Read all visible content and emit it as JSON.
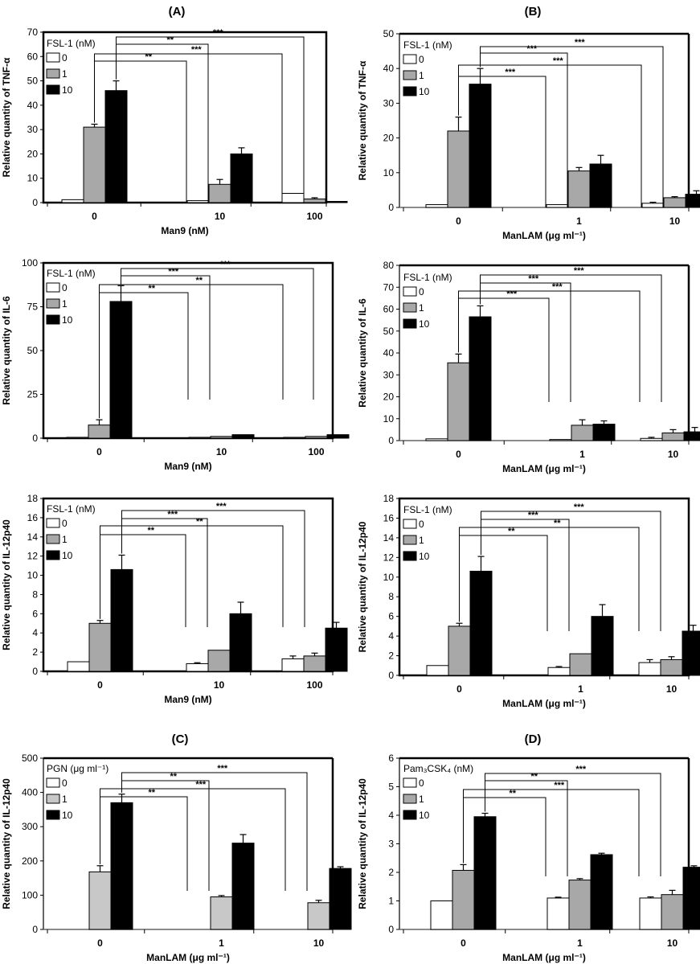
{
  "panel_labels": [
    "(A)",
    "(B)",
    "(C)",
    "(D)"
  ],
  "colors": {
    "white_bar": "#ffffff",
    "gray_bar": "#a8a8a8",
    "light_gray_bar": "#c8c8c8",
    "black_bar": "#000000",
    "ink": "#000000"
  },
  "chart_data": [
    {
      "id": "A1",
      "type": "bar",
      "ylabel": "Relative quantity of TNF-α",
      "xlabel": "Man9 (nM)",
      "categories": [
        "0",
        "10",
        "100"
      ],
      "ylim": [
        0,
        70
      ],
      "yticks": [
        0,
        10,
        20,
        30,
        40,
        50,
        60,
        70
      ],
      "legend_title": "FSL-1 (nM)",
      "series": [
        {
          "name": "0",
          "values": [
            1.2,
            0.8,
            3.8
          ],
          "errors": [
            0,
            0,
            0
          ]
        },
        {
          "name": "1",
          "values": [
            31,
            7.5,
            1.5
          ],
          "errors": [
            1.2,
            2,
            0.5
          ]
        },
        {
          "name": "10",
          "values": [
            46,
            20,
            0.5
          ],
          "errors": [
            4,
            2.5,
            0
          ]
        }
      ],
      "sig": [
        {
          "label": "**",
          "to": "10 nM, FSL-1 1"
        },
        {
          "label": "**",
          "to": "10 nM, FSL-1 10"
        },
        {
          "label": "***",
          "to": "100 nM, FSL-1 1"
        },
        {
          "label": "***",
          "to": "100 nM, FSL-1 10"
        }
      ]
    },
    {
      "id": "B1",
      "type": "bar",
      "ylabel": "Relative quantity of TNF-α",
      "xlabel": "ManLAM (μg ml⁻¹)",
      "categories": [
        "0",
        "1",
        "10"
      ],
      "ylim": [
        0,
        50
      ],
      "yticks": [
        0,
        10,
        20,
        30,
        40,
        50
      ],
      "legend_title": "FSL-1 (nM)",
      "series": [
        {
          "name": "0",
          "values": [
            0.8,
            0.8,
            1.2
          ],
          "errors": [
            0,
            0,
            0.3
          ]
        },
        {
          "name": "1",
          "values": [
            22,
            10.5,
            2.8
          ],
          "errors": [
            4,
            1,
            0.3
          ]
        },
        {
          "name": "10",
          "values": [
            35.5,
            12.5,
            3.8
          ],
          "errors": [
            4.5,
            2.5,
            1
          ]
        }
      ],
      "sig": [
        {
          "label": "***",
          "to": "1, FSL-1 1"
        },
        {
          "label": "***",
          "to": "1, FSL-1 10"
        },
        {
          "label": "***",
          "to": "10, FSL-1 1"
        },
        {
          "label": "***",
          "to": "10, FSL-1 10"
        }
      ]
    },
    {
      "id": "A2",
      "type": "bar",
      "ylabel": "Relative quantity of IL-6",
      "xlabel": "Man9 (nM)",
      "categories": [
        "0",
        "10",
        "100"
      ],
      "ylim": [
        0,
        100
      ],
      "yticks": [
        0,
        25,
        50,
        75,
        100
      ],
      "legend_title": "FSL-1 (nM)",
      "series": [
        {
          "name": "0",
          "values": [
            0.5,
            0.5,
            0.5
          ],
          "errors": [
            0,
            0,
            0
          ]
        },
        {
          "name": "1",
          "values": [
            7.5,
            1,
            1
          ],
          "errors": [
            3,
            0,
            0
          ]
        },
        {
          "name": "10",
          "values": [
            78,
            2,
            2
          ],
          "errors": [
            9,
            0,
            0
          ]
        }
      ],
      "sig": [
        {
          "label": "**",
          "to": "10 nM, FSL-1 1"
        },
        {
          "label": "***",
          "to": "10 nM, FSL-1 10"
        },
        {
          "label": "**",
          "to": "100 nM, FSL-1 1"
        },
        {
          "label": "***",
          "to": "100 nM, FSL-1 10"
        }
      ]
    },
    {
      "id": "B2",
      "type": "bar",
      "ylabel": "Relative quantity of IL-6",
      "xlabel": "ManLAM (μg ml⁻¹)",
      "categories": [
        "0",
        "1",
        "10"
      ],
      "ylim": [
        0,
        80
      ],
      "yticks": [
        0,
        10,
        20,
        30,
        40,
        50,
        60,
        70,
        80
      ],
      "legend_title": "FSL-1 (nM)",
      "series": [
        {
          "name": "0",
          "values": [
            0.8,
            0.5,
            1
          ],
          "errors": [
            0,
            0,
            0.5
          ]
        },
        {
          "name": "1",
          "values": [
            35.5,
            7,
            3.5
          ],
          "errors": [
            4,
            2.5,
            1.5
          ]
        },
        {
          "name": "10",
          "values": [
            56.5,
            7.5,
            4
          ],
          "errors": [
            5,
            1.5,
            2
          ]
        }
      ],
      "sig": [
        {
          "label": "***",
          "to": "1, FSL-1 1"
        },
        {
          "label": "***",
          "to": "1, FSL-1 10"
        },
        {
          "label": "***",
          "to": "10, FSL-1 1"
        },
        {
          "label": "***",
          "to": "10, FSL-1 10"
        }
      ]
    },
    {
      "id": "A3",
      "type": "bar",
      "ylabel": "Relative quantity of IL-12p40",
      "xlabel": "Man9 (nM)",
      "categories": [
        "0",
        "10",
        "100"
      ],
      "ylim": [
        0,
        18
      ],
      "yticks": [
        0,
        2,
        4,
        6,
        8,
        10,
        12,
        14,
        16,
        18
      ],
      "legend_title": "FSL-1 (nM)",
      "series": [
        {
          "name": "0",
          "values": [
            1,
            0.8,
            1.3
          ],
          "errors": [
            0,
            0.1,
            0.3
          ]
        },
        {
          "name": "1",
          "values": [
            5,
            2.2,
            1.6
          ],
          "errors": [
            0.3,
            0,
            0.3
          ]
        },
        {
          "name": "10",
          "values": [
            10.6,
            6,
            4.5
          ],
          "errors": [
            1.5,
            1.2,
            0.6
          ]
        }
      ],
      "sig": [
        {
          "label": "**",
          "to": "10 nM, FSL-1 1"
        },
        {
          "label": "***",
          "to": "10 nM, FSL-1 10"
        },
        {
          "label": "**",
          "to": "100 nM, FSL-1 1"
        },
        {
          "label": "***",
          "to": "100 nM, FSL-1 10"
        }
      ]
    },
    {
      "id": "B3",
      "type": "bar",
      "ylabel": "Relative quantity of IL-12p40",
      "xlabel": "ManLAM (μg ml⁻¹)",
      "categories": [
        "0",
        "1",
        "10"
      ],
      "ylim": [
        0,
        18
      ],
      "yticks": [
        0,
        2,
        4,
        6,
        8,
        10,
        12,
        14,
        16,
        18
      ],
      "legend_title": "FSL-1 (nM)",
      "series": [
        {
          "name": "0",
          "values": [
            1,
            0.8,
            1.3
          ],
          "errors": [
            0,
            0.1,
            0.3
          ]
        },
        {
          "name": "1",
          "values": [
            5,
            2.2,
            1.6
          ],
          "errors": [
            0.3,
            0,
            0.3
          ]
        },
        {
          "name": "10",
          "values": [
            10.6,
            6,
            4.5
          ],
          "errors": [
            1.5,
            1.2,
            0.6
          ]
        }
      ],
      "sig": [
        {
          "label": "**",
          "to": "1, FSL-1 1"
        },
        {
          "label": "***",
          "to": "1, FSL-1 10"
        },
        {
          "label": "**",
          "to": "10, FSL-1 1"
        },
        {
          "label": "***",
          "to": "10, FSL-1 10"
        }
      ]
    },
    {
      "id": "C",
      "type": "bar",
      "ylabel": "Relative quantity of IL-12p40",
      "xlabel": "ManLAM (μg ml⁻¹)",
      "categories": [
        "0",
        "1",
        "10"
      ],
      "ylim": [
        0,
        500
      ],
      "yticks": [
        0,
        100,
        200,
        300,
        400,
        500
      ],
      "legend_title": "PGN (μg ml⁻¹)",
      "series": [
        {
          "name": "0",
          "values": [
            0,
            0,
            0
          ],
          "errors": [
            0,
            0,
            0
          ]
        },
        {
          "name": "1",
          "values": [
            168,
            95,
            78
          ],
          "errors": [
            18,
            4,
            7
          ]
        },
        {
          "name": "10",
          "values": [
            370,
            252,
            178
          ],
          "errors": [
            25,
            25,
            5
          ]
        }
      ],
      "sig": [
        {
          "label": "**",
          "to": "1, PGN 1"
        },
        {
          "label": "**",
          "to": "1, PGN 10"
        },
        {
          "label": "***",
          "to": "10, PGN 1"
        },
        {
          "label": "***",
          "to": "10, PGN 10"
        }
      ]
    },
    {
      "id": "D",
      "type": "bar",
      "ylabel": "Relative quantity of IL-12p40",
      "xlabel": "ManLAM (μg ml⁻¹)",
      "categories": [
        "0",
        "1",
        "10"
      ],
      "ylim": [
        0,
        6
      ],
      "yticks": [
        0,
        1,
        2,
        3,
        4,
        5,
        6
      ],
      "legend_title": "Pam₃CSK₄ (nM)",
      "series": [
        {
          "name": "0",
          "values": [
            1,
            1.1,
            1.1
          ],
          "errors": [
            0,
            0.03,
            0.04
          ]
        },
        {
          "name": "1",
          "values": [
            2.07,
            1.73,
            1.22
          ],
          "errors": [
            0.2,
            0.05,
            0.15
          ]
        },
        {
          "name": "10",
          "values": [
            3.95,
            2.62,
            2.18
          ],
          "errors": [
            0.12,
            0.05,
            0.05
          ]
        }
      ],
      "sig": [
        {
          "label": "**",
          "to": "1, Pam₃CSK₄ 1"
        },
        {
          "label": "**",
          "to": "1, Pam₃CSK₄ 10"
        },
        {
          "label": "***",
          "to": "10, Pam₃CSK₄ 1"
        },
        {
          "label": "***",
          "to": "10, Pam₃CSK₄ 10"
        }
      ]
    }
  ]
}
